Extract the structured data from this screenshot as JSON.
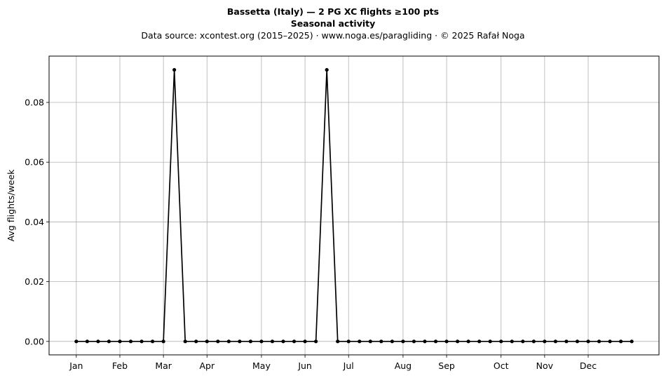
{
  "title": {
    "line1": "Bassetta (Italy)  —  2 PG XC flights ≥100 pts",
    "line2": "Seasonal activity",
    "line3": "Data source: xcontest.org (2015–2025)  ·  www.noga.es/paragliding  ·  © 2025 Rafał Noga"
  },
  "colors": {
    "line": "#000000",
    "grid": "#b0b0b0",
    "axes": "#000000"
  },
  "chart_data": {
    "type": "line",
    "title": "Bassetta (Italy)  —  2 PG XC flights ≥100 pts",
    "subtitle": "Seasonal activity",
    "xlabel": "",
    "ylabel": "Avg flights/week",
    "ylim": [
      -0.0045,
      0.0955
    ],
    "xlim": [
      -2.5,
      53.5
    ],
    "yticks": [
      0.0,
      0.02,
      0.04,
      0.06,
      0.08
    ],
    "ytick_labels": [
      "0.00",
      "0.02",
      "0.04",
      "0.06",
      "0.08"
    ],
    "xticks": [
      {
        "week": 0,
        "label": "Jan"
      },
      {
        "week": 4,
        "label": "Feb"
      },
      {
        "week": 8,
        "label": "Mar"
      },
      {
        "week": 12,
        "label": "Apr"
      },
      {
        "week": 17,
        "label": "May"
      },
      {
        "week": 21,
        "label": "Jun"
      },
      {
        "week": 25,
        "label": "Jul"
      },
      {
        "week": 30,
        "label": "Aug"
      },
      {
        "week": 34,
        "label": "Sep"
      },
      {
        "week": 39,
        "label": "Oct"
      },
      {
        "week": 43,
        "label": "Nov"
      },
      {
        "week": 47,
        "label": "Dec"
      }
    ],
    "grid": true,
    "series": [
      {
        "x": [
          0,
          1,
          2,
          3,
          4,
          5,
          6,
          7,
          8,
          9,
          10,
          11,
          12,
          13,
          14,
          15,
          16,
          17,
          18,
          19,
          20,
          21,
          22,
          23,
          24,
          25,
          26,
          27,
          28,
          29,
          30,
          31,
          32,
          33,
          34,
          35,
          36,
          37,
          38,
          39,
          40,
          41,
          42,
          43,
          44,
          45,
          46,
          47,
          48,
          49,
          50,
          51
        ],
        "values": [
          0,
          0,
          0,
          0,
          0,
          0,
          0,
          0,
          0,
          0.0909,
          0,
          0,
          0,
          0,
          0,
          0,
          0,
          0,
          0,
          0,
          0,
          0,
          0,
          0.0909,
          0,
          0,
          0,
          0,
          0,
          0,
          0,
          0,
          0,
          0,
          0,
          0,
          0,
          0,
          0,
          0,
          0,
          0,
          0,
          0,
          0,
          0,
          0,
          0,
          0,
          0,
          0,
          0
        ]
      }
    ]
  }
}
